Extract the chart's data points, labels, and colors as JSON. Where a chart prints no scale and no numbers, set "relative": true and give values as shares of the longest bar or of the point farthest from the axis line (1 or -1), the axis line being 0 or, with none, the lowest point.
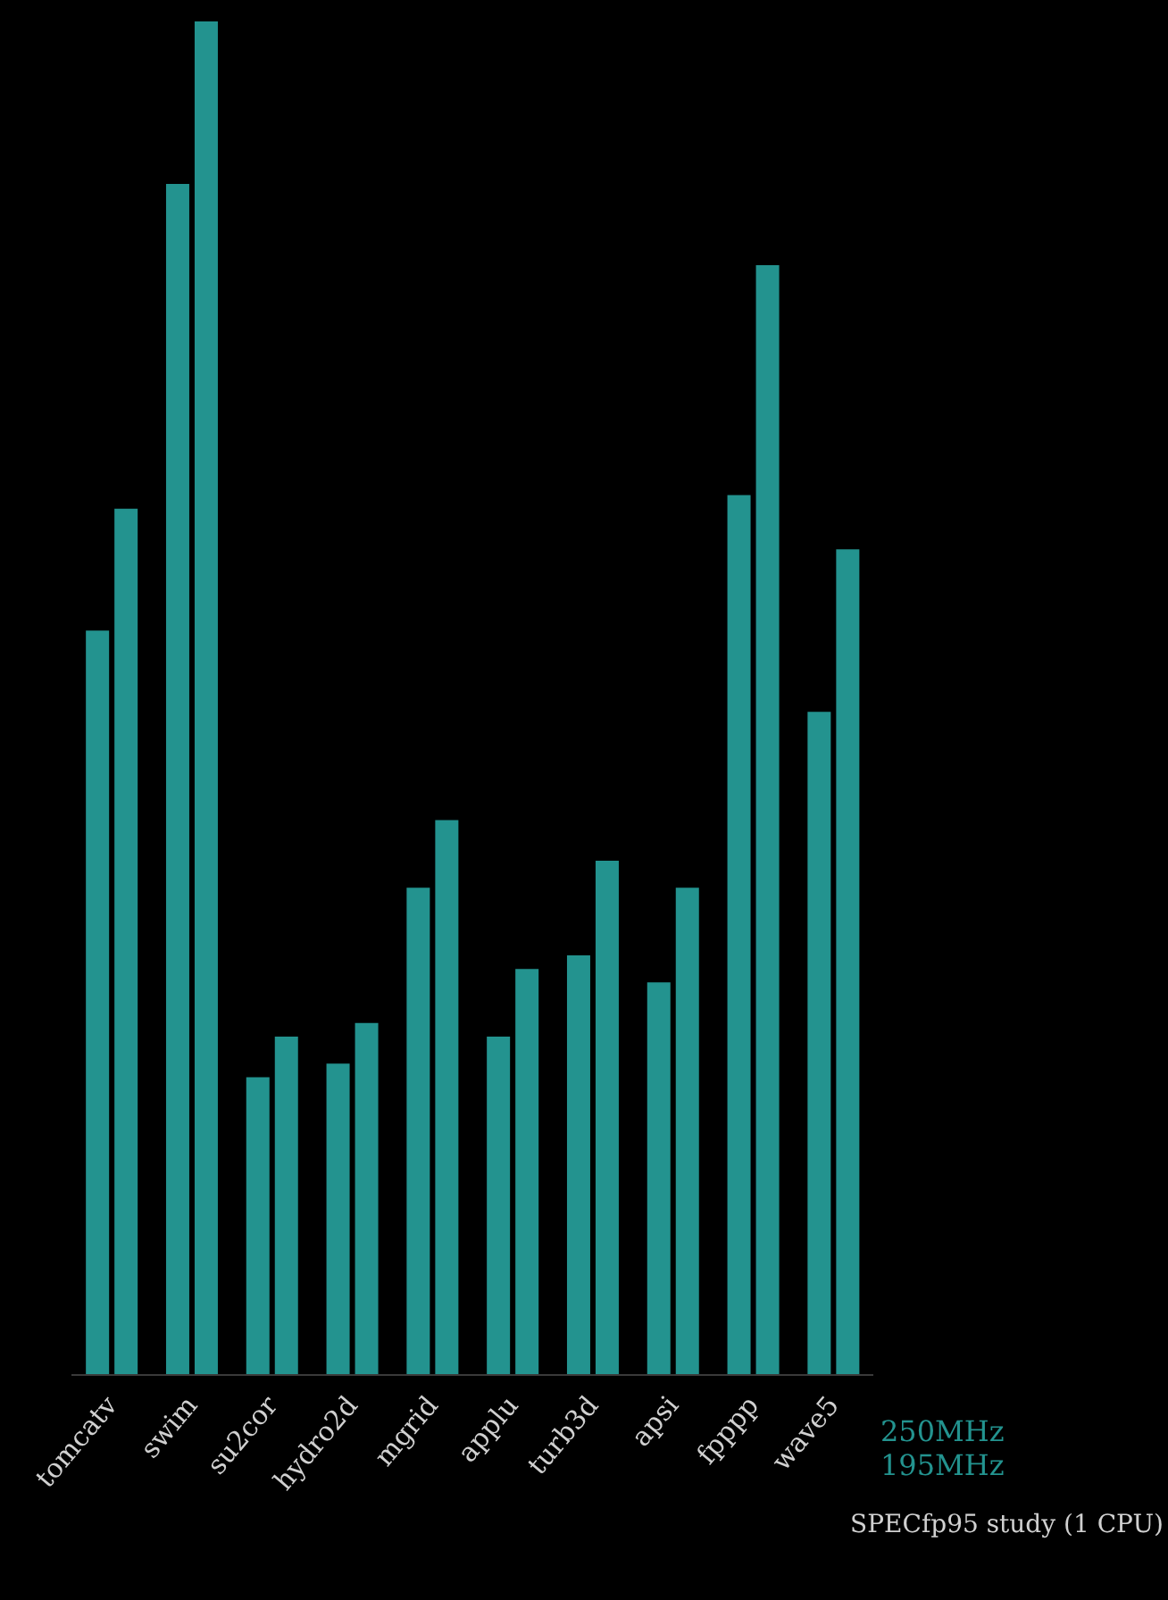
{
  "chart_data": {
    "type": "bar",
    "title": "SPECfp95 study (1 CPU)",
    "relative": true,
    "legend": "bottom right",
    "categories": [
      "tomcatv",
      "swim",
      "su2cor",
      "hydro2d",
      "mgrid",
      "applu",
      "turb3d",
      "apsi",
      "fpppp",
      "wave5"
    ],
    "series": [
      {
        "name": "195MHz",
        "color": "#23938f",
        "values": [
          0.55,
          0.88,
          0.22,
          0.23,
          0.36,
          0.25,
          0.31,
          0.29,
          0.65,
          0.49
        ]
      },
      {
        "name": "250MHz",
        "color": "#23938f",
        "values": [
          0.64,
          1,
          0.25,
          0.26,
          0.41,
          0.3,
          0.38,
          0.36,
          0.82,
          0.61
        ]
      }
    ]
  }
}
